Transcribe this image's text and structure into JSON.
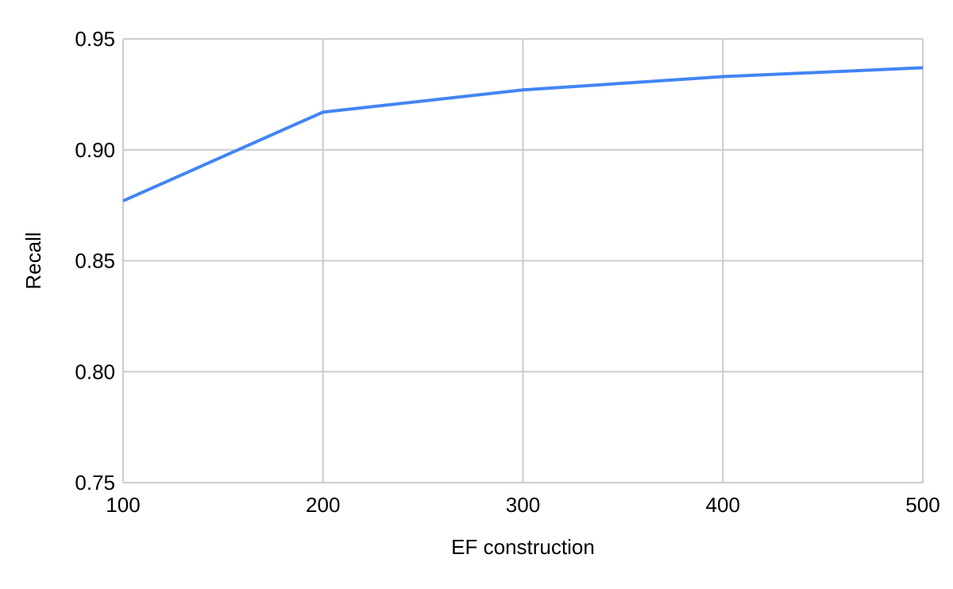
{
  "chart_data": {
    "type": "line",
    "x": [
      100,
      200,
      300,
      400,
      500
    ],
    "series": [
      {
        "name": "Recall",
        "values": [
          0.877,
          0.917,
          0.927,
          0.933,
          0.937
        ]
      }
    ],
    "title": "",
    "xlabel": "EF construction",
    "ylabel": "Recall",
    "xlim": [
      100,
      500
    ],
    "ylim": [
      0.75,
      0.95
    ],
    "x_ticks": [
      100,
      200,
      300,
      400,
      500
    ],
    "x_tick_labels": [
      "100",
      "200",
      "300",
      "400",
      "500"
    ],
    "y_ticks": [
      0.75,
      0.8,
      0.85,
      0.9,
      0.95
    ],
    "y_tick_labels": [
      "0.75",
      "0.80",
      "0.85",
      "0.90",
      "0.95"
    ],
    "grid": true,
    "legend_position": "none",
    "colors": {
      "series": "#4285f4",
      "grid": "#cccccc",
      "text": "#000000",
      "background": "#ffffff"
    }
  }
}
